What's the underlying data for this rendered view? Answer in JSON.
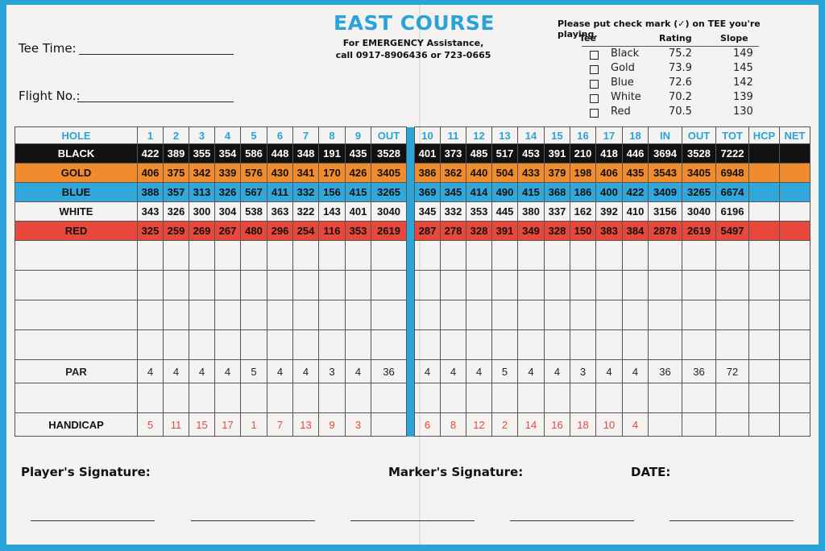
{
  "header": {
    "title": "EAST COURSE",
    "emergency_line1": "For EMERGENCY Assistance,",
    "emergency_line2": "call 0917-8906436 or 723-0665",
    "tee_time_label": "Tee Time:",
    "flight_no_label": "Flight No.:"
  },
  "tee_selector": {
    "instruction": "Please put check mark (✓) on TEE you're playing.",
    "col_tee": "Tee",
    "col_rating": "Rating",
    "col_slope": "Slope",
    "rows": [
      {
        "name": "Black",
        "rating": "75.2",
        "slope": "149"
      },
      {
        "name": "Gold",
        "rating": "73.9",
        "slope": "145"
      },
      {
        "name": "Blue",
        "rating": "72.6",
        "slope": "142"
      },
      {
        "name": "White",
        "rating": "70.2",
        "slope": "139"
      },
      {
        "name": "Red",
        "rating": "70.5",
        "slope": "130"
      }
    ]
  },
  "scorecard": {
    "hole_label": "HOLE",
    "headers": [
      "1",
      "2",
      "3",
      "4",
      "5",
      "6",
      "7",
      "8",
      "9",
      "OUT",
      "10",
      "11",
      "12",
      "13",
      "14",
      "15",
      "16",
      "17",
      "18",
      "IN",
      "OUT",
      "TOT",
      "HCP",
      "NET"
    ],
    "tees": [
      {
        "label": "BLACK",
        "color": "#111111",
        "values": [
          "422",
          "389",
          "355",
          "354",
          "586",
          "448",
          "348",
          "191",
          "435",
          "3528",
          "401",
          "373",
          "485",
          "517",
          "453",
          "391",
          "210",
          "418",
          "446",
          "3694",
          "3528",
          "7222",
          "",
          ""
        ]
      },
      {
        "label": "GOLD",
        "color": "#f08b2e",
        "values": [
          "406",
          "375",
          "342",
          "339",
          "576",
          "430",
          "341",
          "170",
          "426",
          "3405",
          "386",
          "362",
          "440",
          "504",
          "433",
          "379",
          "198",
          "406",
          "435",
          "3543",
          "3405",
          "6948",
          "",
          ""
        ]
      },
      {
        "label": "BLUE",
        "color": "#31a7dc",
        "values": [
          "388",
          "357",
          "313",
          "326",
          "567",
          "411",
          "332",
          "156",
          "415",
          "3265",
          "369",
          "345",
          "414",
          "490",
          "415",
          "368",
          "186",
          "400",
          "422",
          "3409",
          "3265",
          "6674",
          "",
          ""
        ]
      },
      {
        "label": "WHITE",
        "color": "#f4f3f1",
        "values": [
          "343",
          "326",
          "300",
          "304",
          "538",
          "363",
          "322",
          "143",
          "401",
          "3040",
          "345",
          "332",
          "353",
          "445",
          "380",
          "337",
          "162",
          "392",
          "410",
          "3156",
          "3040",
          "6196",
          "",
          ""
        ]
      },
      {
        "label": "RED",
        "color": "#e8473b",
        "values": [
          "325",
          "259",
          "269",
          "267",
          "480",
          "296",
          "254",
          "116",
          "353",
          "2619",
          "287",
          "278",
          "328",
          "391",
          "349",
          "328",
          "150",
          "383",
          "384",
          "2878",
          "2619",
          "5497",
          "",
          ""
        ]
      }
    ],
    "par_label": "PAR",
    "par": [
      "4",
      "4",
      "4",
      "4",
      "5",
      "4",
      "4",
      "3",
      "4",
      "36",
      "4",
      "4",
      "4",
      "5",
      "4",
      "4",
      "3",
      "4",
      "4",
      "36",
      "36",
      "72",
      "",
      ""
    ],
    "handicap_label": "HANDICAP",
    "handicap": [
      "5",
      "11",
      "15",
      "17",
      "1",
      "7",
      "13",
      "9",
      "3",
      "",
      "6",
      "8",
      "12",
      "2",
      "14",
      "16",
      "18",
      "10",
      "4",
      "",
      "",
      "",
      "",
      ""
    ]
  },
  "footer": {
    "player_signature": "Player's Signature:",
    "marker_signature": "Marker's Signature:",
    "date": "DATE:"
  },
  "colors": {
    "accent": "#2aa3d8",
    "handicap": "#e8473b"
  }
}
